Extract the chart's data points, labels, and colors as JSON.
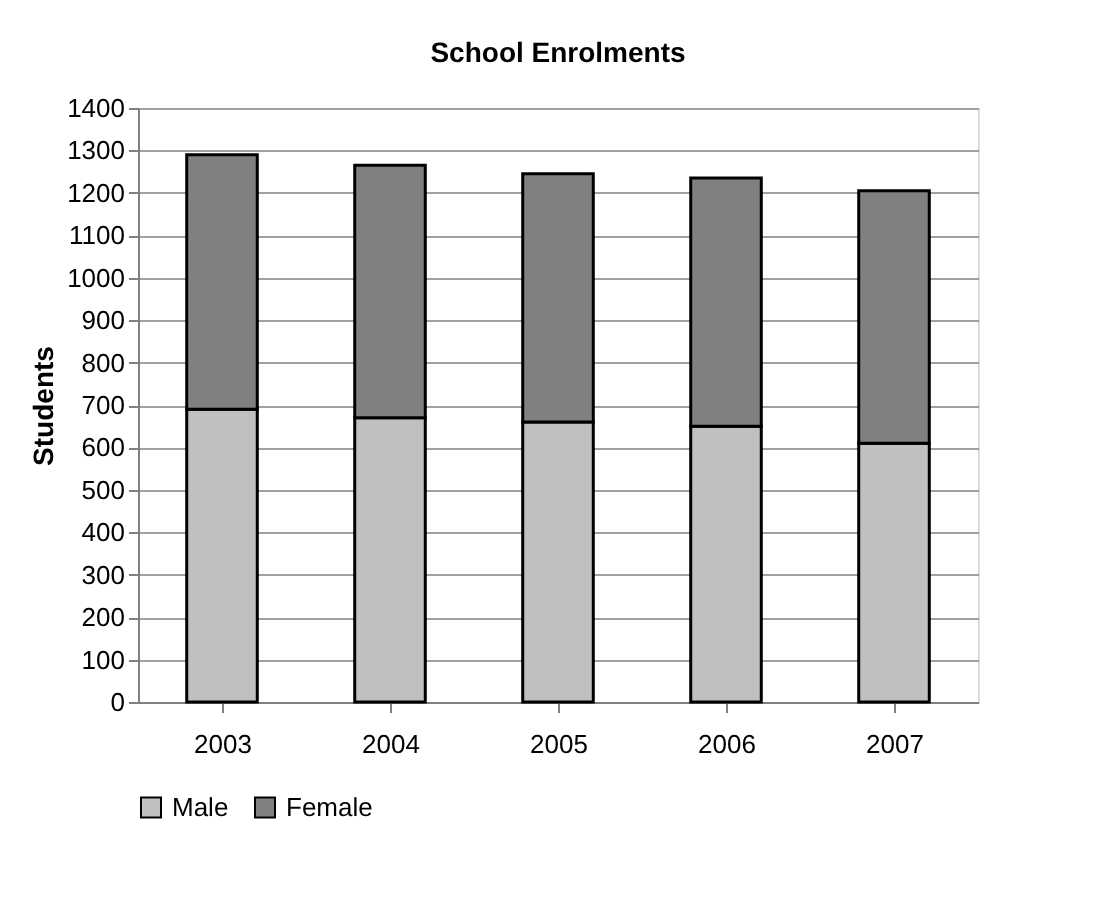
{
  "chart_data": {
    "type": "bar",
    "title": "School Enrolments",
    "ylabel": "Students",
    "stacked": true,
    "categories": [
      "2003",
      "2004",
      "2005",
      "2006",
      "2007"
    ],
    "series": [
      {
        "name": "Male",
        "color": "#c0c0c0",
        "values": [
          690,
          670,
          660,
          650,
          610
        ]
      },
      {
        "name": "Female",
        "color": "#808080",
        "values": [
          600,
          595,
          585,
          585,
          595
        ]
      }
    ],
    "ylim": [
      0,
      1400
    ],
    "yticks": [
      0,
      100,
      200,
      300,
      400,
      500,
      600,
      700,
      800,
      900,
      1000,
      1100,
      1200,
      1300,
      1400
    ],
    "grid": "y",
    "legend": "bottom"
  }
}
